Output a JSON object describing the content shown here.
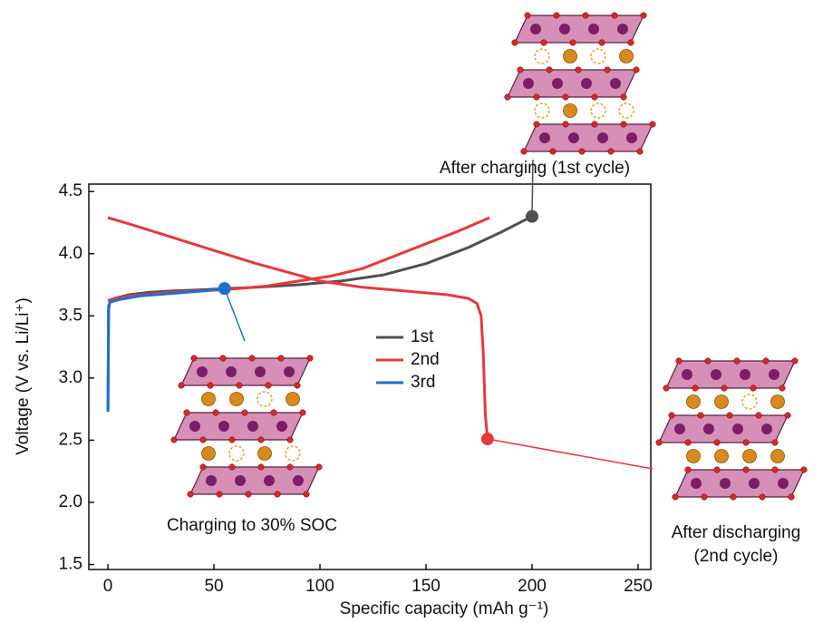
{
  "chart_data": {
    "type": "line",
    "xlabel": "Specific capacity (mAh g⁻¹)",
    "ylabel": "Voltage (V vs. Li/Li⁺)",
    "xlim": [
      -9,
      256
    ],
    "ylim": [
      1.46,
      4.56
    ],
    "xticks": [
      0,
      50,
      100,
      150,
      200,
      250
    ],
    "yticks": [
      1.5,
      {
        "value": 2,
        "label": "2.0"
      },
      2.5,
      {
        "value": 3,
        "label": "3.0"
      },
      3.5,
      {
        "value": 4,
        "label": "4.0"
      },
      4.5
    ],
    "series": [
      {
        "name": "1st",
        "color": "#505050",
        "x": [
          0,
          0.3,
          1,
          3,
          10,
          20,
          30,
          45,
          55,
          70,
          90,
          110,
          130,
          150,
          170,
          185,
          200
        ],
        "values": [
          2.73,
          3.55,
          3.62,
          3.64,
          3.67,
          3.69,
          3.7,
          3.71,
          3.72,
          3.73,
          3.75,
          3.78,
          3.83,
          3.92,
          4.05,
          4.17,
          4.3
        ]
      },
      {
        "name": "2nd",
        "color": "#e8383d",
        "x": [
          0,
          10,
          25,
          40,
          55,
          70,
          85,
          100,
          120,
          140,
          160,
          170,
          174,
          176,
          177,
          178,
          179,
          null,
          0,
          1,
          10,
          30,
          55,
          75,
          90,
          105,
          120,
          135,
          150,
          165,
          180
        ],
        "values": [
          4.29,
          4.24,
          4.16,
          4.08,
          4.0,
          3.92,
          3.85,
          3.78,
          3.73,
          3.7,
          3.67,
          3.64,
          3.6,
          3.5,
          3.2,
          2.7,
          2.52,
          null,
          3.62,
          3.63,
          3.66,
          3.69,
          3.71,
          3.74,
          3.78,
          3.82,
          3.88,
          3.98,
          4.08,
          4.18,
          4.29
        ]
      },
      {
        "name": "3rd",
        "color": "#1f6fd1",
        "x": [
          0,
          0.3,
          1,
          5,
          15,
          30,
          45,
          55
        ],
        "values": [
          2.73,
          3.58,
          3.61,
          3.63,
          3.66,
          3.68,
          3.7,
          3.72
        ]
      }
    ],
    "annotations": [
      {
        "text": "After charging (1st cycle)",
        "x": 200,
        "y": 4.3,
        "color": "#505050"
      },
      {
        "text": "Charging to 30% SOC",
        "x": 55,
        "y": 3.72,
        "color": "#1f6fd1"
      },
      {
        "text": "After discharging (2nd cycle)",
        "x": 179,
        "y": 2.51,
        "color": "#e8383d"
      }
    ]
  }
}
